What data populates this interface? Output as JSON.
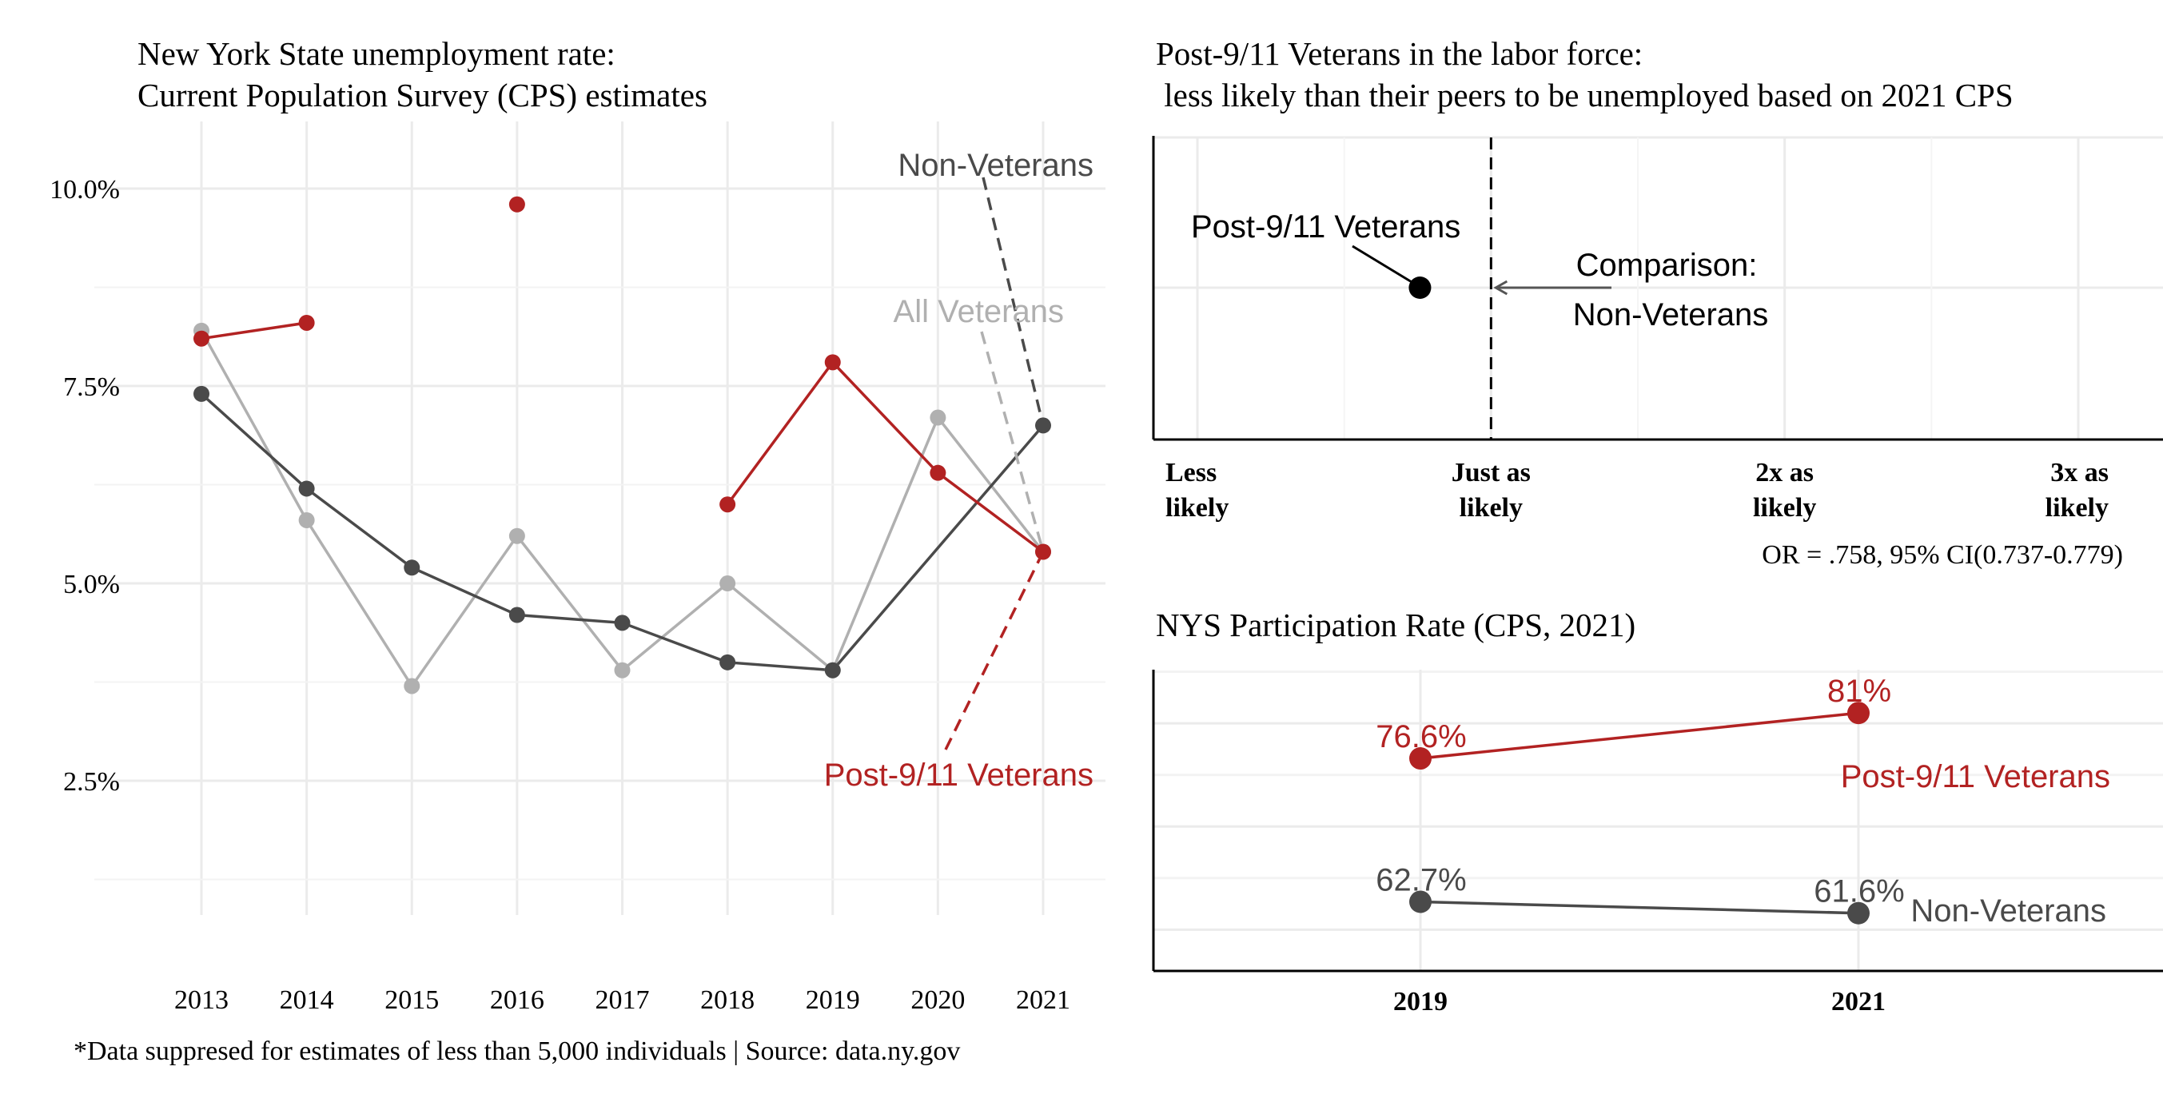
{
  "footnote": "*Data suppresed for estimates of less than 5,000 individuals | Source: data.ny.gov",
  "chart_data": [
    {
      "id": "unemployment",
      "type": "line",
      "title": "New York State unemployment rate:",
      "subtitle": "Current Population Survey (CPS) estimates",
      "xlabel": "",
      "ylabel": "",
      "x": [
        2013,
        2014,
        2015,
        2016,
        2017,
        2018,
        2019,
        2020,
        2021
      ],
      "x_tick_labels": [
        "2013",
        "2014",
        "2015",
        "2016",
        "2017",
        "2018",
        "2019",
        "2020",
        "2021"
      ],
      "y_ticks": [
        2.5,
        5.0,
        7.5,
        10.0
      ],
      "y_tick_labels": [
        "2.5%",
        "5.0%",
        "7.5%",
        "10.0%"
      ],
      "ylim": [
        0.8,
        10.85
      ],
      "grid": true,
      "series": [
        {
          "name": "All Veterans",
          "color": "#b0b0b0",
          "values": [
            8.2,
            5.8,
            3.7,
            5.6,
            3.9,
            5.0,
            3.9,
            7.1,
            5.4
          ],
          "segments": [
            [
              0,
              8
            ]
          ],
          "label_anchor_year": 2021
        },
        {
          "name": "Non-Veterans",
          "color": "#4a4a4a",
          "values": [
            7.4,
            6.2,
            5.2,
            4.6,
            4.5,
            4.0,
            3.9,
            null,
            7.0
          ],
          "segments": [
            [
              0,
              6
            ],
            [
              6,
              8
            ]
          ],
          "label_anchor_year": 2021
        },
        {
          "name": "Post-9/11 Veterans",
          "color": "#b22222",
          "values": [
            8.1,
            8.3,
            null,
            9.8,
            null,
            6.0,
            7.8,
            6.4,
            5.4
          ],
          "segments": [
            [
              0,
              1
            ],
            [
              5,
              8
            ]
          ],
          "label_anchor_year": 2021
        }
      ]
    },
    {
      "id": "odds-ratio",
      "type": "scatter",
      "title": "Post-9/11 Veterans in the labor force:",
      "subtitle": " less likely than their peers to be unemployed based on 2021 CPS",
      "x_ticks": [
        0,
        1,
        2,
        3
      ],
      "x_tick_labels": [
        [
          "Less",
          "likely"
        ],
        [
          "Just as",
          "likely"
        ],
        [
          "2x as",
          "likely"
        ],
        [
          "3x as",
          "likely"
        ]
      ],
      "xlim": [
        -0.1,
        3.1
      ],
      "reference_value": 1,
      "point": {
        "label": "Post-9/11 Veterans",
        "value": 0.758
      },
      "reference_label": [
        "Comparison:",
        "Non-Veterans"
      ],
      "caption": "OR = .758, 95% CI(0.737-0.779)",
      "grid": true
    },
    {
      "id": "participation",
      "type": "line",
      "title": "NYS Participation Rate (CPS, 2021)",
      "categories": [
        "2019",
        "2021"
      ],
      "ylim": [
        56.0,
        85.2
      ],
      "grid": true,
      "series": [
        {
          "name": "Post-9/11 Veterans",
          "color": "#b22222",
          "values": [
            76.6,
            81
          ],
          "value_labels": [
            "76.6%",
            "81%"
          ]
        },
        {
          "name": "Non-Veterans",
          "color": "#4a4a4a",
          "values": [
            62.7,
            61.6
          ],
          "value_labels": [
            "62.7%",
            "61.6%"
          ]
        }
      ]
    }
  ]
}
